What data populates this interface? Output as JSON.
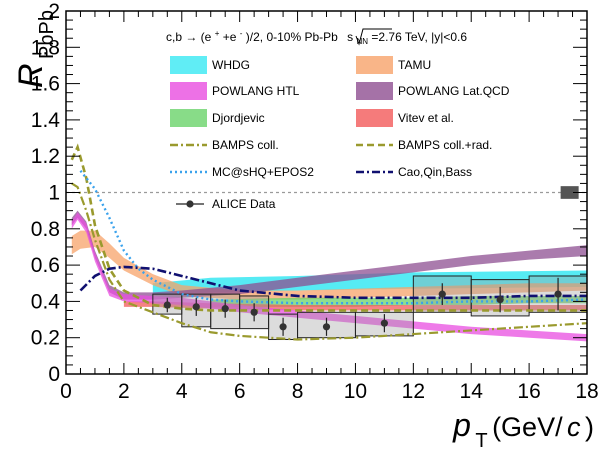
{
  "chart_data": {
    "type": "line",
    "ylabel_main": "R",
    "ylabel_sub": "PbPb",
    "xlabel_main": "p",
    "xlabel_sub": "T",
    "xlabel_unit_pre": " (GeV/",
    "xlabel_unit_c": "c",
    "xlabel_unit_post": ")",
    "header": {
      "part1": "c,b → (e",
      "sup1": "+",
      "part2": "+e",
      "sup2": "-",
      "part3": ")/2, 0-10% Pb-Pb ",
      "snn": "s",
      "snn_sub": "NN",
      "part4": "=2.76 TeV, |y|<0.6"
    },
    "xlim": [
      0,
      18
    ],
    "ylim": [
      0,
      2
    ],
    "x_ticks": [
      0,
      2,
      4,
      6,
      8,
      10,
      12,
      14,
      16,
      18
    ],
    "y_ticks": [
      0,
      0.2,
      0.4,
      0.6,
      0.8,
      1,
      1.2,
      1.4,
      1.6,
      1.8,
      2
    ],
    "y_tick_labels": [
      "0",
      "0.2",
      "0.4",
      "0.6",
      "0.8",
      "1",
      "1.2",
      "1.4",
      "1.6",
      "1.8",
      "2"
    ],
    "reference_line": 1,
    "legend": [
      {
        "label": "WHDG",
        "style": "band",
        "color": "#38e8f2"
      },
      {
        "label": "TAMU",
        "style": "band",
        "color": "#f7a36a"
      },
      {
        "label": "POWLANG HTL",
        "style": "band",
        "color": "#e84ee0"
      },
      {
        "label": "POWLANG Lat.QCD",
        "style": "band",
        "color": "#8e4f91"
      },
      {
        "label": "Djordjevic",
        "style": "band",
        "color": "#6ad36a"
      },
      {
        "label": "Vitev et al.",
        "style": "band",
        "color": "#f25a5a"
      },
      {
        "label": "BAMPS coll.",
        "style": "dashdot",
        "color": "#9a9a2e"
      },
      {
        "label": "BAMPS coll.+rad.",
        "style": "dashed",
        "color": "#9a9a2e"
      },
      {
        "label": "MC@sHQ+EPOS2",
        "style": "dotted",
        "color": "#3aa2ec"
      },
      {
        "label": "Cao,Qin,Bass",
        "style": "dashdot",
        "color": "#101070"
      },
      {
        "label": "ALICE Data",
        "style": "marker",
        "color": "#333333"
      }
    ],
    "series": {
      "WHDG": {
        "x": [
          3,
          5,
          8,
          12,
          18
        ],
        "low": [
          0.44,
          0.45,
          0.46,
          0.47,
          0.48
        ],
        "high": [
          0.5,
          0.53,
          0.54,
          0.56,
          0.57
        ]
      },
      "TAMU": {
        "x": [
          0.2,
          0.5,
          1,
          1.5,
          2,
          3,
          4,
          6,
          8,
          10,
          12,
          14,
          16,
          18
        ],
        "low": [
          0.66,
          0.69,
          0.7,
          0.64,
          0.57,
          0.49,
          0.43,
          0.41,
          0.41,
          0.42,
          0.43,
          0.44,
          0.45,
          0.46
        ],
        "high": [
          0.76,
          0.79,
          0.79,
          0.72,
          0.64,
          0.55,
          0.49,
          0.46,
          0.46,
          0.47,
          0.48,
          0.49,
          0.5,
          0.5
        ]
      },
      "POWLANG HTL": {
        "x": [
          0.2,
          0.4,
          0.7,
          1,
          1.5,
          2,
          3,
          4,
          6,
          8,
          10,
          12,
          14,
          16,
          18
        ],
        "low": [
          0.8,
          0.85,
          0.78,
          0.62,
          0.43,
          0.4,
          0.39,
          0.38,
          0.34,
          0.31,
          0.28,
          0.25,
          0.22,
          0.2,
          0.18
        ],
        "high": [
          0.84,
          0.89,
          0.83,
          0.67,
          0.47,
          0.44,
          0.43,
          0.42,
          0.38,
          0.35,
          0.32,
          0.29,
          0.26,
          0.24,
          0.22
        ]
      },
      "POWLANG Lat.QCD": {
        "x": [
          0.2,
          0.4,
          0.7,
          1,
          1.5,
          2,
          3,
          4,
          6,
          8,
          10,
          12,
          14,
          16,
          18
        ],
        "low": [
          0.82,
          0.86,
          0.8,
          0.64,
          0.45,
          0.41,
          0.41,
          0.42,
          0.44,
          0.48,
          0.52,
          0.56,
          0.6,
          0.63,
          0.65
        ],
        "high": [
          0.86,
          0.9,
          0.84,
          0.68,
          0.49,
          0.45,
          0.45,
          0.46,
          0.49,
          0.53,
          0.57,
          0.61,
          0.65,
          0.68,
          0.71
        ]
      },
      "Djordjevic": {
        "x": [
          5,
          8,
          10,
          12,
          14,
          16,
          18
        ],
        "low": [
          0.37,
          0.37,
          0.37,
          0.38,
          0.38,
          0.39,
          0.39
        ],
        "high": [
          0.41,
          0.42,
          0.42,
          0.42,
          0.43,
          0.43,
          0.43
        ]
      },
      "Vitev et al.": {
        "x": [
          2,
          3,
          5,
          8,
          10,
          12,
          14,
          16,
          18
        ],
        "low": [
          0.37,
          0.37,
          0.36,
          0.35,
          0.35,
          0.35,
          0.35,
          0.35,
          0.35
        ],
        "high": [
          0.4,
          0.4,
          0.39,
          0.38,
          0.38,
          0.38,
          0.38,
          0.38,
          0.38
        ]
      },
      "BAMPS coll.": {
        "x": [
          0.2,
          0.4,
          0.7,
          1,
          1.5,
          2,
          3,
          4,
          5,
          6,
          7,
          8,
          10,
          12,
          14,
          16,
          18
        ],
        "y": [
          1.05,
          1.03,
          0.9,
          0.74,
          0.52,
          0.4,
          0.34,
          0.28,
          0.23,
          0.21,
          0.2,
          0.19,
          0.2,
          0.22,
          0.24,
          0.26,
          0.28
        ]
      },
      "BAMPS coll.+rad.": {
        "x": [
          0.2,
          0.4,
          0.7,
          1,
          1.5,
          2,
          3,
          4,
          5,
          6,
          8,
          10,
          12,
          14,
          16,
          18
        ],
        "y": [
          1.18,
          1.25,
          1.08,
          0.82,
          0.58,
          0.46,
          0.38,
          0.36,
          0.35,
          0.35,
          0.35,
          0.35,
          0.35,
          0.35,
          0.35,
          0.35
        ]
      },
      "MC@sHQ+EPOS2": {
        "x": [
          0.5,
          1,
          1.5,
          2,
          2.5,
          3,
          4,
          5,
          6,
          8,
          10,
          12,
          14,
          16,
          18
        ],
        "y": [
          1.12,
          1.02,
          0.86,
          0.68,
          0.58,
          0.52,
          0.44,
          0.41,
          0.4,
          0.39,
          0.39,
          0.39,
          0.4,
          0.4,
          0.41
        ]
      },
      "Cao,Qin,Bass": {
        "x": [
          0.5,
          1,
          1.5,
          2,
          3,
          4,
          5,
          6,
          8,
          10,
          12,
          14,
          16,
          18
        ],
        "y": [
          0.46,
          0.54,
          0.58,
          0.59,
          0.58,
          0.54,
          0.5,
          0.46,
          0.43,
          0.42,
          0.42,
          0.42,
          0.43,
          0.43
        ]
      },
      "ALICE Data": {
        "x": [
          3.5,
          4.5,
          5.5,
          6.5,
          7.5,
          9,
          11,
          13,
          15,
          17
        ],
        "y": [
          0.38,
          0.37,
          0.36,
          0.34,
          0.26,
          0.26,
          0.28,
          0.44,
          0.41,
          0.44
        ],
        "stat": [
          0.04,
          0.05,
          0.05,
          0.05,
          0.05,
          0.05,
          0.05,
          0.06,
          0.07,
          0.09
        ],
        "syst_low": [
          0.33,
          0.26,
          0.25,
          0.25,
          0.19,
          0.2,
          0.21,
          0.34,
          0.32,
          0.34
        ],
        "syst_high": [
          0.44,
          0.44,
          0.44,
          0.43,
          0.33,
          0.34,
          0.34,
          0.54,
          0.52,
          0.54
        ],
        "xwidth": [
          0.5,
          0.5,
          0.5,
          0.5,
          0.5,
          1,
          1,
          1,
          1,
          1
        ]
      }
    },
    "norm_box": {
      "x": 17.4,
      "y": 1.0,
      "half_height": 0.035
    },
    "grid": false,
    "legend_placement": "top"
  }
}
